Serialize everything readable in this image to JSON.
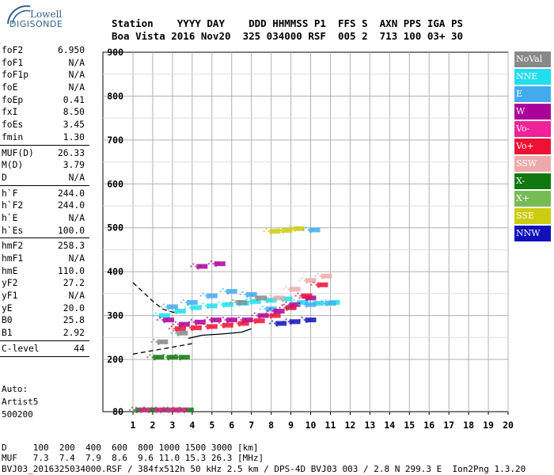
{
  "logo": {
    "line1": "Lowell",
    "line2": "DIGISONDE"
  },
  "header": {
    "row1": "Station    YYYY DAY    DDD HHMMSS P1  FFS S  AXN PPS IGA PS",
    "row2": "Boa Vista 2016 Nov20  325 034000 RSF  005 2  713 100 03+ 30"
  },
  "params": [
    {
      "name": "foF2",
      "value": "6.950"
    },
    {
      "name": "foF1",
      "value": "N/A"
    },
    {
      "name": "foF1p",
      "value": "N/A"
    },
    {
      "name": "foE",
      "value": "N/A"
    },
    {
      "name": "foEp",
      "value": "0.41"
    },
    {
      "name": "fxI",
      "value": "8.50"
    },
    {
      "name": "foEs",
      "value": "3.45"
    },
    {
      "name": "fmin",
      "value": "1.30"
    },
    {
      "sep": true
    },
    {
      "name": "MUF(D)",
      "value": "26.33"
    },
    {
      "name": "M(D)",
      "value": "3.79"
    },
    {
      "name": "D",
      "value": "N/A"
    },
    {
      "sep": true
    },
    {
      "name": "h`F",
      "value": "244.0"
    },
    {
      "name": "h`F2",
      "value": "244.0"
    },
    {
      "name": "h`E",
      "value": "N/A"
    },
    {
      "name": "h`Es",
      "value": "100.0"
    },
    {
      "sep": true
    },
    {
      "name": "hmF2",
      "value": "258.3"
    },
    {
      "name": "hmF1",
      "value": "N/A"
    },
    {
      "name": "hmE",
      "value": "110.0"
    },
    {
      "name": "yF2",
      "value": "27.2"
    },
    {
      "name": "yF1",
      "value": "N/A"
    },
    {
      "name": "yE",
      "value": "20.0"
    },
    {
      "name": "B0",
      "value": "25.8"
    },
    {
      "name": "B1",
      "value": "2.92"
    },
    {
      "sep": true
    },
    {
      "name": "C-level",
      "value": "44"
    },
    {
      "sep": true
    }
  ],
  "auto": {
    "line1": "Auto:",
    "line2": "Artist5",
    "line3": "500200"
  },
  "legend": [
    {
      "label": "NoVal",
      "color": "#888888"
    },
    {
      "label": "NNE",
      "color": "#22ddee"
    },
    {
      "label": "E",
      "color": "#44aaee"
    },
    {
      "label": "W",
      "color": "#aa0099"
    },
    {
      "label": "Vo-",
      "color": "#ee2299"
    },
    {
      "label": "Vo+",
      "color": "#ee1133"
    },
    {
      "label": "SSW",
      "color": "#eeaaaa"
    },
    {
      "label": "X-",
      "color": "#117711"
    },
    {
      "label": "X+",
      "color": "#77bb55"
    },
    {
      "label": "SSE",
      "color": "#cccc11"
    },
    {
      "label": "NNW",
      "color": "#1111bb"
    }
  ],
  "footer": {
    "row1": "D     100  200  400  600  800 1000 1500 3000 [km]",
    "row2": "MUF   7.3  7.4  7.9  8.6  9.6 11.0 15.3 26.3 [MHz]",
    "row3": "BVJ03_2016325034000.RSF / 384fx512h 50 kHz 2.5 km / DPS-4D BVJ03 003 / 2.8 N 299.3 E  Ion2Png 1.3.20"
  },
  "chart_data": {
    "type": "scatter",
    "title": "",
    "xlabel": "",
    "ylabel": "",
    "xlim": [
      1,
      20
    ],
    "ylim": [
      80,
      900
    ],
    "x_ticks": [
      1,
      2,
      3,
      4,
      5,
      6,
      7,
      8,
      9,
      10,
      11,
      12,
      13,
      14,
      15,
      16,
      17,
      18,
      19,
      20
    ],
    "y_ticks": [
      80,
      200,
      300,
      400,
      500,
      600,
      700,
      800,
      900
    ],
    "grid": true,
    "series": [
      {
        "name": "X-",
        "color": "#117711",
        "points": [
          [
            1.4,
            84
          ],
          [
            2.0,
            84
          ],
          [
            2.6,
            84
          ],
          [
            3.2,
            84
          ],
          [
            3.8,
            84
          ],
          [
            2.3,
            205
          ],
          [
            3.0,
            205
          ],
          [
            3.6,
            205
          ]
        ]
      },
      {
        "name": "Vo-",
        "color": "#ee2299",
        "points": [
          [
            1.6,
            84
          ],
          [
            2.4,
            84
          ],
          [
            3.0,
            84
          ],
          [
            3.5,
            84
          ]
        ]
      },
      {
        "name": "NNE",
        "color": "#22ddee",
        "points": [
          [
            2.6,
            300
          ],
          [
            3.4,
            310
          ],
          [
            4.2,
            318
          ],
          [
            5.0,
            322
          ],
          [
            5.8,
            325
          ],
          [
            6.6,
            328
          ],
          [
            7.2,
            332
          ],
          [
            8.0,
            335
          ],
          [
            8.8,
            338
          ],
          [
            9.6,
            330
          ],
          [
            10.4,
            328
          ],
          [
            11.2,
            330
          ]
        ]
      },
      {
        "name": "E",
        "color": "#44aaee",
        "points": [
          [
            3.0,
            320
          ],
          [
            4.0,
            330
          ],
          [
            5.0,
            345
          ],
          [
            6.0,
            355
          ],
          [
            7.0,
            348
          ],
          [
            8.0,
            315
          ],
          [
            9.0,
            318
          ],
          [
            10.0,
            325
          ],
          [
            11.0,
            328
          ],
          [
            10.2,
            495
          ]
        ]
      },
      {
        "name": "W",
        "color": "#aa0099",
        "points": [
          [
            2.8,
            290
          ],
          [
            3.6,
            280
          ],
          [
            4.4,
            285
          ],
          [
            5.2,
            290
          ],
          [
            6.0,
            290
          ],
          [
            6.8,
            290
          ],
          [
            7.6,
            300
          ],
          [
            8.4,
            310
          ],
          [
            9.2,
            325
          ],
          [
            10.0,
            340
          ],
          [
            4.5,
            412
          ],
          [
            5.4,
            418
          ]
        ]
      },
      {
        "name": "Vo+",
        "color": "#ee1133",
        "points": [
          [
            3.4,
            270
          ],
          [
            4.2,
            272
          ],
          [
            5.0,
            275
          ],
          [
            5.8,
            278
          ],
          [
            6.6,
            282
          ],
          [
            7.4,
            288
          ],
          [
            8.2,
            300
          ],
          [
            9.0,
            318
          ],
          [
            9.8,
            345
          ],
          [
            10.6,
            370
          ]
        ]
      },
      {
        "name": "SSW",
        "color": "#eeaaaa",
        "points": [
          [
            8.4,
            340
          ],
          [
            9.2,
            360
          ],
          [
            10.0,
            380
          ],
          [
            10.8,
            390
          ]
        ]
      },
      {
        "name": "SSE",
        "color": "#cccc11",
        "points": [
          [
            8.2,
            492
          ],
          [
            8.8,
            494
          ],
          [
            9.4,
            498
          ]
        ]
      },
      {
        "name": "NNW",
        "color": "#1111bb",
        "points": [
          [
            8.5,
            282
          ],
          [
            9.2,
            286
          ],
          [
            10.0,
            290
          ]
        ]
      },
      {
        "name": "NoVal",
        "color": "#888888",
        "points": [
          [
            2.5,
            240
          ],
          [
            3.5,
            260
          ],
          [
            6.5,
            330
          ],
          [
            7.5,
            340
          ]
        ]
      }
    ],
    "traces": [
      {
        "style": "dashed",
        "points": [
          [
            1,
            375
          ],
          [
            2.0,
            333
          ],
          [
            2.5,
            315
          ],
          [
            3.2,
            305
          ]
        ]
      },
      {
        "style": "dashed",
        "points": [
          [
            1,
            212
          ],
          [
            2.0,
            220
          ],
          [
            3.0,
            228
          ],
          [
            4.0,
            236
          ]
        ]
      },
      {
        "style": "solid",
        "points": [
          [
            3.8,
            248
          ],
          [
            4.5,
            255
          ],
          [
            5.5,
            258
          ],
          [
            6.5,
            262
          ],
          [
            7.0,
            270
          ]
        ]
      }
    ]
  }
}
